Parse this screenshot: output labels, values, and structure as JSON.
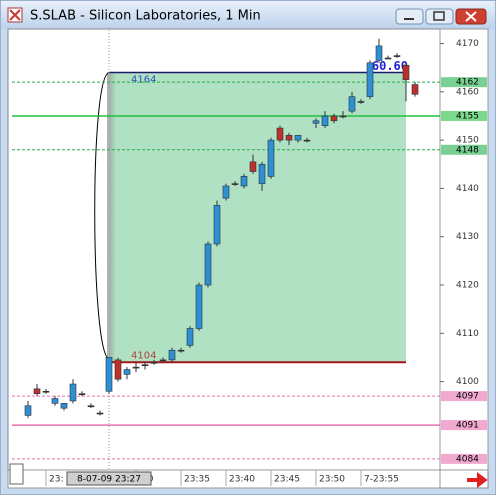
{
  "window": {
    "title": "S.SLAB - Silicon Laboratories, 1 Min"
  },
  "chart_data": {
    "type": "candlestick",
    "categories": [
      null,
      null,
      "23:",
      null,
      null,
      null,
      null,
      null,
      null,
      "8-07-09 23:27",
      null,
      null,
      ":30",
      null,
      null,
      null,
      null,
      "23:35",
      null,
      null,
      null,
      null,
      "23:40",
      null,
      null,
      null,
      null,
      "23:45",
      null,
      null,
      null,
      null,
      "23:50",
      null,
      null,
      null,
      null,
      "7-23:55",
      null,
      null,
      null,
      null,
      null,
      null
    ],
    "open": [
      4093,
      4098.5,
      4098,
      4095.5,
      4094.5,
      4096,
      4097.5,
      4095,
      4093.5,
      4098,
      4104.5,
      4101.5,
      4103,
      4103.5,
      4104,
      4104.5,
      4104.5,
      4106.5,
      4107.5,
      4111,
      4120,
      4128.5,
      4138,
      4141,
      4140.5,
      4145.5,
      4141,
      4142.5,
      4152.5,
      4151,
      4150,
      4150,
      4153.5,
      4153,
      4155,
      4155,
      4156,
      4158,
      4159,
      4166.5,
      4167,
      4167.5,
      4165.5,
      4161.5
    ],
    "high": [
      4096,
      4099.5,
      4098.5,
      4097,
      4095.5,
      4100.5,
      4098,
      4095.5,
      4094,
      4105,
      4105,
      4103,
      4104,
      4104,
      4104.5,
      4105,
      4107,
      4107,
      4111.5,
      4120.5,
      4129,
      4137.5,
      4141,
      4141.5,
      4143,
      4147,
      4145.5,
      4150.5,
      4153,
      4151.5,
      4151,
      4150.5,
      4154.5,
      4156,
      4155.5,
      4156,
      4160,
      4158.5,
      4166.5,
      4171,
      4167.5,
      4168,
      4166,
      4162
    ],
    "low": [
      4092.5,
      4097,
      4097.5,
      4095,
      4094,
      4095.5,
      4097,
      4094.5,
      4093,
      4097.5,
      4100,
      4100.5,
      4102,
      4102.5,
      4103.5,
      4104,
      4104,
      4106,
      4107,
      4110.5,
      4119.5,
      4128,
      4137.5,
      4140.5,
      4140,
      4143,
      4139.5,
      4142,
      4149.5,
      4149,
      4149.5,
      4149.5,
      4152.5,
      4152.5,
      4153.5,
      4154.5,
      4155.5,
      4157.5,
      4158.5,
      4166,
      4167,
      4167,
      4158,
      4159
    ],
    "close": [
      4095,
      4097.5,
      4098,
      4096.5,
      4095.5,
      4099.5,
      4097.5,
      4095,
      4093.5,
      4105,
      4100.5,
      4102.5,
      4103,
      4103.5,
      4104,
      4104.5,
      4106.5,
      4106.5,
      4111,
      4120,
      4128.5,
      4136.5,
      4140.5,
      4141,
      4142.5,
      4143.5,
      4145,
      4150,
      4150,
      4150,
      4151,
      4150,
      4154,
      4155,
      4154,
      4155,
      4159,
      4158,
      4166,
      4169.5,
      4167,
      4167.5,
      4162.5,
      4159.5
    ],
    "up_color": "#2f8fd0",
    "down_color": "#c0302a",
    "ylim": [
      4081.7,
      4172.8
    ],
    "yticks": [
      4100,
      4110,
      4120,
      4130,
      4140,
      4150,
      4160,
      4170
    ],
    "levels": [
      {
        "value": 4162,
        "color": "#22b04a",
        "style": "dashed"
      },
      {
        "value": 4155,
        "color": "#22c040",
        "style": "solid"
      },
      {
        "value": 4148,
        "color": "#22b04a",
        "style": "dashed"
      },
      {
        "value": 4097,
        "color": "#e870b0",
        "style": "dashed"
      },
      {
        "value": 4091,
        "color": "#e870b0",
        "style": "solid"
      },
      {
        "value": 4084,
        "color": "#e870b0",
        "style": "dashed"
      }
    ],
    "range": {
      "high": 4164,
      "low": 4104,
      "label": "60.60"
    }
  }
}
